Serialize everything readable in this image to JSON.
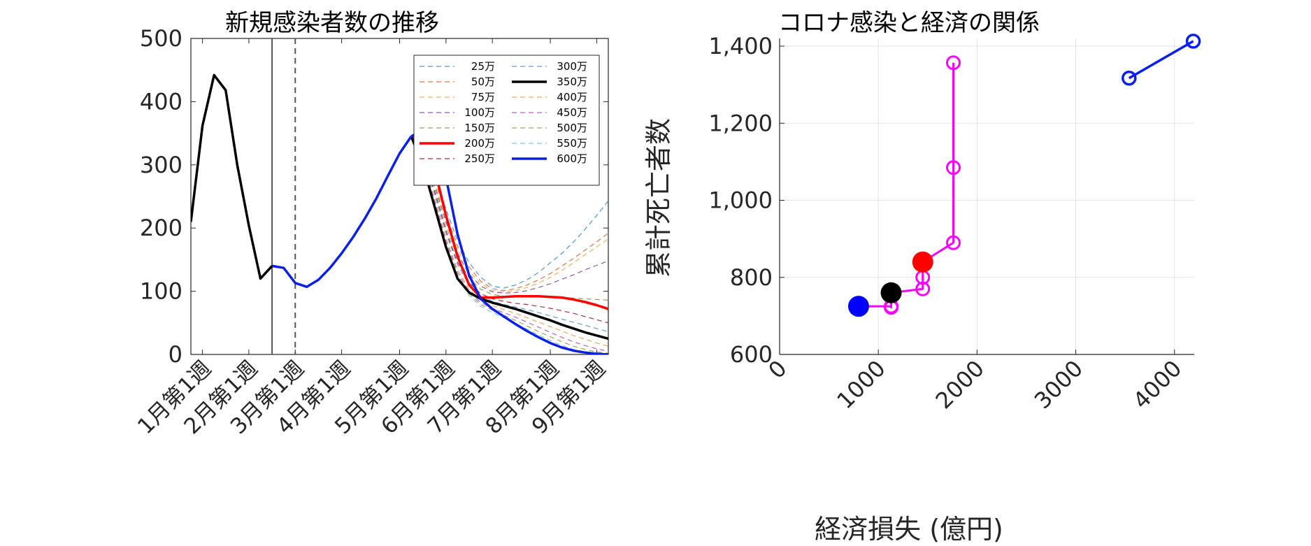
{
  "chart_data": [
    {
      "type": "line",
      "title": "新規感染者数の推移",
      "xlabel": "",
      "ylabel": "",
      "ylim": [
        0,
        500
      ],
      "yticks": [
        "0",
        "100",
        "200",
        "300",
        "400",
        "500"
      ],
      "xlim": [
        0,
        36
      ],
      "x_ticks": [
        {
          "x": 1,
          "label": "1月第1週"
        },
        {
          "x": 5,
          "label": "2月第1週"
        },
        {
          "x": 9,
          "label": "3月第1週"
        },
        {
          "x": 13,
          "label": "4月第1週"
        },
        {
          "x": 18,
          "label": "5月第1週"
        },
        {
          "x": 22,
          "label": "6月第1週"
        },
        {
          "x": 26,
          "label": "7月第1週"
        },
        {
          "x": 31,
          "label": "8月第1週"
        },
        {
          "x": 35,
          "label": "9月第1週"
        }
      ],
      "vertical_lines": [
        {
          "x": 7,
          "style": "solid",
          "color": "#555555"
        },
        {
          "x": 9,
          "style": "dashed",
          "color": "#555555"
        }
      ],
      "actual": {
        "color": "#000000",
        "x": [
          0,
          1,
          2,
          3,
          4,
          5,
          6,
          7
        ],
        "y": [
          210,
          362,
          442,
          418,
          300,
          204,
          120,
          140
        ]
      },
      "common": {
        "x": [
          7,
          8,
          9,
          10,
          11,
          12,
          13,
          14,
          15,
          16,
          17,
          18,
          19
        ],
        "y": [
          140,
          137,
          113,
          107,
          118,
          137,
          160,
          186,
          215,
          247,
          283,
          318,
          345
        ]
      },
      "projection_x": [
        19,
        20,
        21,
        22,
        23,
        24,
        25,
        26,
        27,
        28,
        29,
        30,
        31,
        32,
        33,
        34,
        35,
        36
      ],
      "legend_position": "top-right",
      "legend_columns": 2,
      "series": [
        {
          "name": "25万",
          "color": "#4f98c9",
          "style": "dashed",
          "width": 1.2,
          "values": [
            345,
            325,
            285,
            230,
            180,
            145,
            122,
            108,
            105,
            110,
            118,
            130,
            145,
            160,
            178,
            198,
            220,
            243
          ]
        },
        {
          "name": "50万",
          "color": "#d9774e",
          "style": "dashed",
          "width": 1.2,
          "values": [
            345,
            320,
            278,
            222,
            172,
            138,
            116,
            104,
            101,
            104,
            110,
            118,
            128,
            140,
            152,
            165,
            178,
            192
          ]
        },
        {
          "name": "75万",
          "color": "#e8b55a",
          "style": "dashed",
          "width": 1.2,
          "values": [
            345,
            318,
            272,
            216,
            166,
            132,
            112,
            101,
            99,
            101,
            106,
            113,
            122,
            133,
            145,
            158,
            170,
            183
          ]
        },
        {
          "name": "100万",
          "color": "#8e5aa3",
          "style": "dashed",
          "width": 1.2,
          "values": [
            345,
            316,
            268,
            210,
            160,
            127,
            108,
            99,
            97,
            98,
            101,
            106,
            112,
            119,
            126,
            134,
            141,
            148
          ]
        },
        {
          "name": "150万",
          "color": "#8aa55a",
          "style": "dashed",
          "width": 1.2,
          "values": [
            345,
            314,
            262,
            203,
            153,
            121,
            103,
            95,
            92,
            91,
            91,
            91,
            90,
            90,
            89,
            88,
            87,
            86
          ]
        },
        {
          "name": "200万",
          "color": "#ff0000",
          "style": "solid",
          "width": 3.5,
          "values": [
            345,
            340,
            295,
            220,
            155,
            110,
            90,
            90,
            91,
            92,
            92,
            92,
            91,
            90,
            87,
            83,
            78,
            72
          ]
        },
        {
          "name": "250万",
          "color": "#a0344a",
          "style": "dashed",
          "width": 1.2,
          "values": [
            345,
            312,
            258,
            196,
            146,
            114,
            96,
            88,
            84,
            81,
            79,
            76,
            73,
            69,
            65,
            60,
            55,
            50
          ]
        },
        {
          "name": "300万",
          "color": "#5b9fd6",
          "style": "dashed",
          "width": 1.2,
          "values": [
            345,
            310,
            255,
            192,
            142,
            110,
            92,
            84,
            79,
            75,
            71,
            66,
            61,
            56,
            51,
            46,
            41,
            36
          ]
        },
        {
          "name": "350万",
          "color": "#000000",
          "style": "solid",
          "width": 3.5,
          "values": [
            345,
            300,
            235,
            170,
            120,
            98,
            88,
            82,
            77,
            72,
            66,
            60,
            54,
            47,
            41,
            35,
            30,
            25
          ]
        },
        {
          "name": "400万",
          "color": "#f2a65a",
          "style": "dashed",
          "width": 1.2,
          "values": [
            345,
            306,
            248,
            184,
            134,
            103,
            86,
            77,
            71,
            65,
            58,
            51,
            44,
            37,
            30,
            24,
            18,
            13
          ]
        },
        {
          "name": "450万",
          "color": "#b366c6",
          "style": "dashed",
          "width": 1.2,
          "values": [
            345,
            304,
            244,
            180,
            130,
            99,
            82,
            73,
            66,
            59,
            51,
            43,
            35,
            27,
            20,
            14,
            9,
            5
          ]
        },
        {
          "name": "500万",
          "color": "#9da65a",
          "style": "dashed",
          "width": 1.2,
          "values": [
            345,
            302,
            240,
            176,
            126,
            96,
            79,
            70,
            62,
            54,
            45,
            36,
            28,
            20,
            13,
            8,
            4,
            2
          ]
        },
        {
          "name": "550万",
          "color": "#7ec8e3",
          "style": "dashed",
          "width": 1.2,
          "values": [
            345,
            300,
            236,
            172,
            122,
            93,
            76,
            66,
            58,
            49,
            40,
            31,
            22,
            14,
            8,
            4,
            2,
            1
          ]
        },
        {
          "name": "600万",
          "color": "#0a20e6",
          "style": "solid",
          "width": 3.5,
          "values": [
            345,
            355,
            350,
            280,
            190,
            125,
            88,
            72,
            60,
            48,
            37,
            27,
            18,
            11,
            6,
            3,
            1,
            0
          ]
        }
      ]
    },
    {
      "type": "scatter",
      "title": "コロナ感染と経済の関係",
      "xlabel": "経済損失 (億円)",
      "ylabel": "累計死亡者数",
      "xlim": [
        0,
        4200
      ],
      "ylim": [
        600,
        1420
      ],
      "xticks": [
        "0",
        "1000",
        "2000",
        "3000",
        "4000"
      ],
      "yticks": [
        "600",
        "800",
        "1,000",
        "1,200",
        "1,400"
      ],
      "grid": true,
      "magenta_path": {
        "color": "#ff00ff",
        "points": [
          [
            800,
            725
          ],
          [
            1130,
            725
          ],
          [
            1130,
            722
          ],
          [
            1130,
            760
          ],
          [
            1450,
            770
          ],
          [
            1450,
            800
          ],
          [
            1450,
            840
          ],
          [
            1760,
            890
          ],
          [
            1760,
            1085
          ],
          [
            1760,
            1357
          ]
        ],
        "hollow_markers": [
          [
            1130,
            725
          ],
          [
            1130,
            722
          ],
          [
            1450,
            770
          ],
          [
            1450,
            800
          ],
          [
            1760,
            890
          ],
          [
            1760,
            1085
          ],
          [
            1760,
            1357
          ]
        ]
      },
      "blue_segment": {
        "color": "#0a20e6",
        "points": [
          [
            3540,
            1317
          ],
          [
            4190,
            1413
          ]
        ]
      },
      "highlighted_points": [
        {
          "x": 800,
          "y": 725,
          "color": "#0000ff"
        },
        {
          "x": 1130,
          "y": 760,
          "color": "#000000"
        },
        {
          "x": 1450,
          "y": 840,
          "color": "#ff0000"
        }
      ]
    }
  ]
}
